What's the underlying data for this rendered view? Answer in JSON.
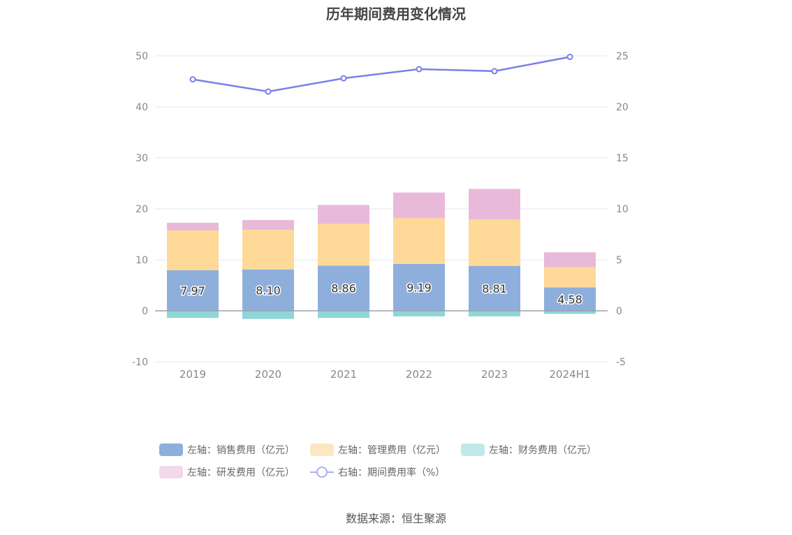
{
  "chart_data": {
    "type": "bar",
    "title": "历年期间费用变化情况",
    "categories": [
      "2019",
      "2020",
      "2021",
      "2022",
      "2023",
      "2024H1"
    ],
    "stacked": true,
    "series": [
      {
        "name": "左轴：销售费用（亿元）",
        "axis": "left",
        "kind": "bar",
        "color": "#8eafdc",
        "values": [
          7.97,
          8.1,
          8.86,
          9.19,
          8.81,
          4.58
        ],
        "labels": [
          "7.97",
          "8.10",
          "8.86",
          "9.19",
          "8.81",
          "4.58"
        ]
      },
      {
        "name": "左轴：管理费用（亿元）",
        "axis": "left",
        "kind": "bar",
        "color": "#fed997",
        "values": [
          7.8,
          7.8,
          8.2,
          9.0,
          9.1,
          4.0
        ]
      },
      {
        "name": "左轴：财务费用（亿元）",
        "axis": "left",
        "kind": "bar",
        "color": "#8fd6d8",
        "values": [
          -1.4,
          -1.6,
          -1.4,
          -1.1,
          -1.1,
          -0.6
        ]
      },
      {
        "name": "左轴：研发费用（亿元）",
        "axis": "left",
        "kind": "bar",
        "color": "#e8b9d9",
        "values": [
          1.5,
          1.9,
          3.7,
          5.0,
          6.0,
          2.9
        ]
      },
      {
        "name": "右轴：期间费用率（%）",
        "axis": "right",
        "kind": "line",
        "color": "#7b7fe8",
        "values": [
          22.7,
          21.5,
          22.8,
          23.7,
          23.5,
          24.9
        ]
      }
    ],
    "left_axis": {
      "min": -10,
      "max": 50,
      "ticks": [
        -10,
        0,
        10,
        20,
        30,
        40,
        50
      ]
    },
    "right_axis": {
      "min": -5,
      "max": 25,
      "ticks": [
        -5,
        0,
        5,
        10,
        15,
        20,
        25
      ]
    },
    "legend_position": "bottom",
    "grid": true
  },
  "legend": {
    "items": [
      {
        "label": "左轴：销售费用（亿元）",
        "color": "#8eafdc",
        "kind": "bar"
      },
      {
        "label": "左轴：管理费用（亿元）",
        "color": "#fde6c2",
        "kind": "bar"
      },
      {
        "label": "左轴：财务费用（亿元）",
        "color": "#c2e8ea",
        "kind": "bar"
      },
      {
        "label": "左轴：研发费用（亿元）",
        "color": "#f3d9ea",
        "kind": "bar"
      },
      {
        "label": "右轴：期间费用率（%）",
        "color": "#a9aef2",
        "kind": "line"
      }
    ]
  },
  "source": "数据来源：恒生聚源"
}
